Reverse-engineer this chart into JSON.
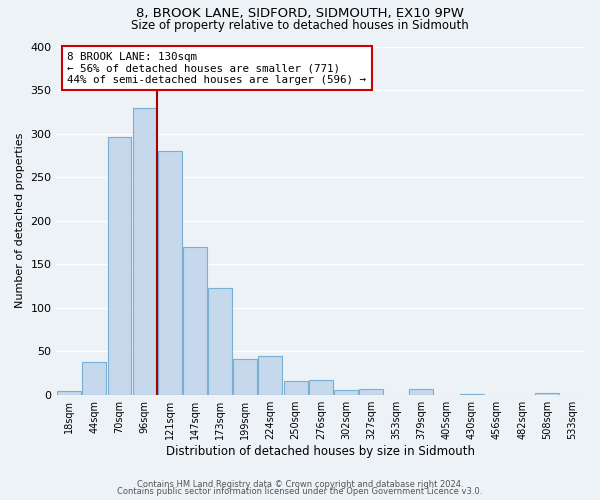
{
  "title": "8, BROOK LANE, SIDFORD, SIDMOUTH, EX10 9PW",
  "subtitle": "Size of property relative to detached houses in Sidmouth",
  "xlabel": "Distribution of detached houses by size in Sidmouth",
  "ylabel": "Number of detached properties",
  "bar_labels": [
    "18sqm",
    "44sqm",
    "70sqm",
    "96sqm",
    "121sqm",
    "147sqm",
    "173sqm",
    "199sqm",
    "224sqm",
    "250sqm",
    "276sqm",
    "302sqm",
    "327sqm",
    "353sqm",
    "379sqm",
    "405sqm",
    "430sqm",
    "456sqm",
    "482sqm",
    "508sqm",
    "533sqm"
  ],
  "bar_values": [
    4,
    37,
    296,
    329,
    280,
    170,
    123,
    41,
    45,
    16,
    17,
    5,
    6,
    0,
    6,
    0,
    1,
    0,
    0,
    2,
    0
  ],
  "bar_color": "#c5d8ec",
  "bar_edge_color": "#7aafd4",
  "highlight_line_color": "#aa0000",
  "ylim": [
    0,
    400
  ],
  "yticks": [
    0,
    50,
    100,
    150,
    200,
    250,
    300,
    350,
    400
  ],
  "annotation_text": "8 BROOK LANE: 130sqm\n← 56% of detached houses are smaller (771)\n44% of semi-detached houses are larger (596) →",
  "annotation_box_color": "#ffffff",
  "annotation_box_edgecolor": "#cc0000",
  "footer1": "Contains HM Land Registry data © Crown copyright and database right 2024.",
  "footer2": "Contains public sector information licensed under the Open Government Licence v3.0.",
  "background_color": "#edf2f7",
  "grid_color": "#ffffff",
  "red_line_bar_index": 4
}
